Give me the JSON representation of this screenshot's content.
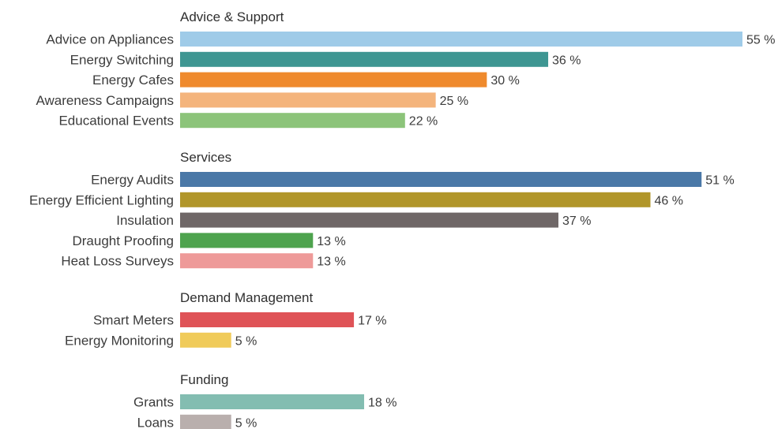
{
  "chart_data": {
    "type": "bar",
    "orientation": "horizontal",
    "value_suffix": " %",
    "grid": false,
    "legend": "none",
    "groups": [
      {
        "title": "Advice & Support",
        "items": [
          {
            "label": "Advice on Appliances",
            "value": 55,
            "display": "55 %",
            "color": "#9fcbe8"
          },
          {
            "label": "Energy Switching",
            "value": 36,
            "display": "36 %",
            "color": "#3e9692"
          },
          {
            "label": "Energy Cafes",
            "value": 30,
            "display": "30 %",
            "color": "#ef8a2d"
          },
          {
            "label": "Awareness Campaigns",
            "value": 25,
            "display": "25 %",
            "color": "#f4b47c"
          },
          {
            "label": "Educational Events",
            "value": 22,
            "display": "22 %",
            "color": "#8cc47a"
          }
        ]
      },
      {
        "title": "Services",
        "items": [
          {
            "label": "Energy Audits",
            "value": 51,
            "display": "51 %",
            "color": "#4a78a7"
          },
          {
            "label": "Energy Efficient Lighting",
            "value": 46,
            "display": "46 %",
            "color": "#b1962a"
          },
          {
            "label": "Insulation",
            "value": 37,
            "display": "37 %",
            "color": "#6f6767"
          },
          {
            "label": "Draught Proofing",
            "value": 13,
            "display": "13 %",
            "color": "#4ea34e"
          },
          {
            "label": "Heat Loss Surveys",
            "value": 13,
            "display": "13 %",
            "color": "#ee9a99"
          }
        ]
      },
      {
        "title": "Demand Management",
        "items": [
          {
            "label": "Smart Meters",
            "value": 17,
            "display": "17 %",
            "color": "#df5357"
          },
          {
            "label": "Energy Monitoring",
            "value": 5,
            "display": "5 %",
            "color": "#f0cb5a"
          }
        ]
      },
      {
        "title": "Funding",
        "items": [
          {
            "label": "Grants",
            "value": 18,
            "display": "18 %",
            "color": "#83bdb1"
          },
          {
            "label": "Loans",
            "value": 5,
            "display": "5 %",
            "color": "#b9afad"
          }
        ]
      }
    ]
  }
}
